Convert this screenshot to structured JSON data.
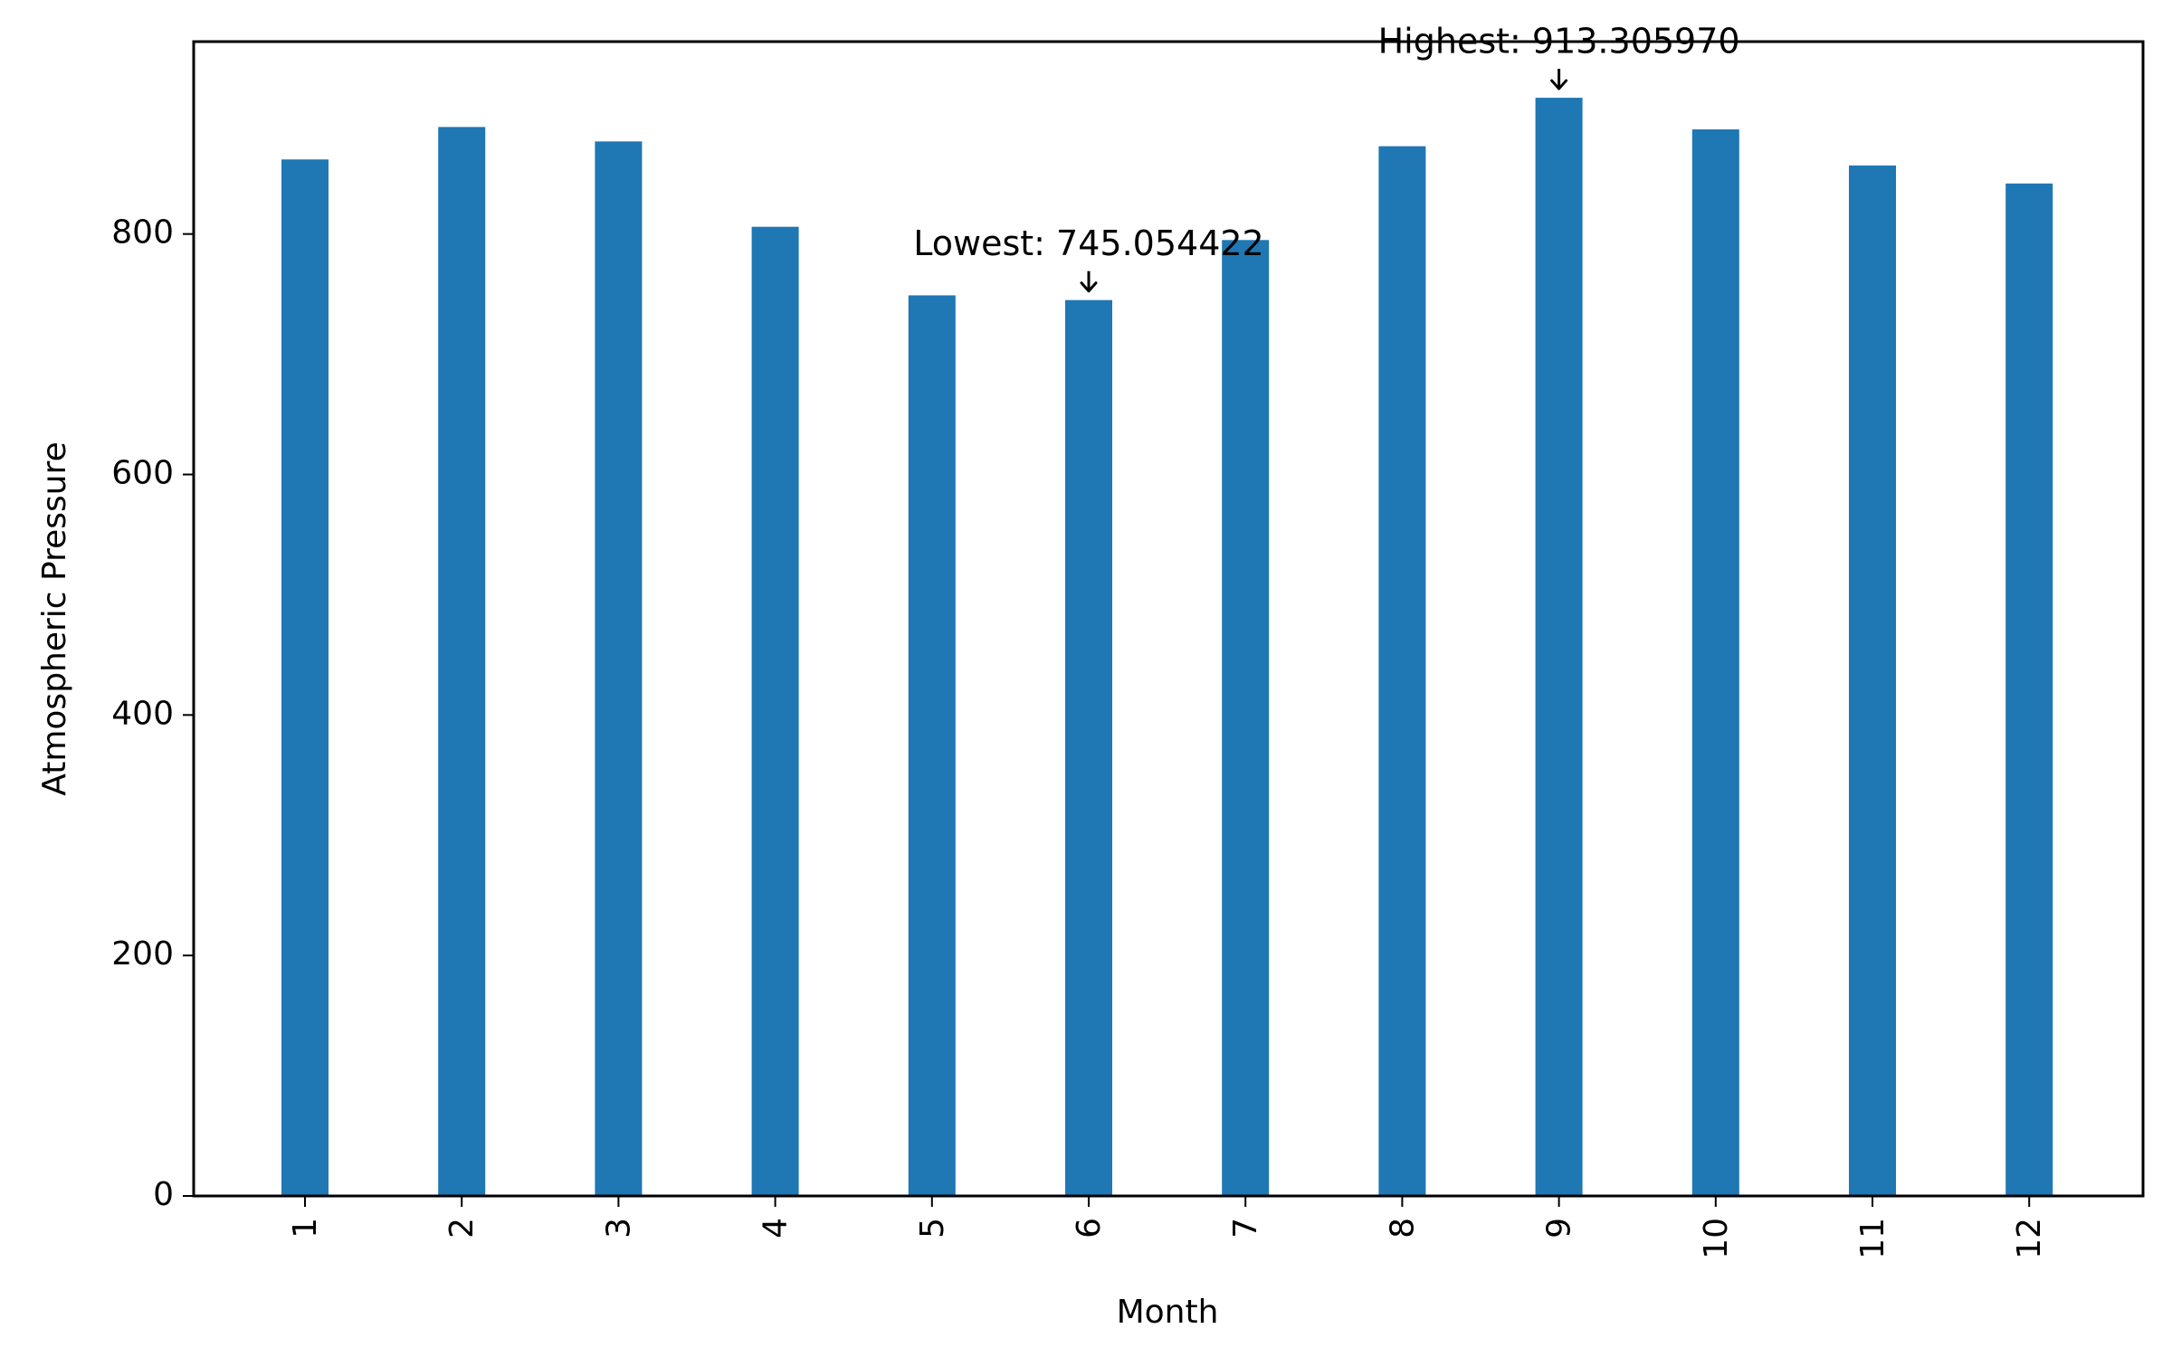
{
  "chart_data": {
    "type": "bar",
    "xlabel": "Month",
    "ylabel": "Atmospheric Pressure",
    "categories": [
      "1",
      "2",
      "3",
      "4",
      "5",
      "6",
      "7",
      "8",
      "9",
      "10",
      "11",
      "12"
    ],
    "values": [
      862,
      889,
      877,
      806,
      749,
      745.054422,
      795,
      873,
      913.30597,
      887,
      857,
      842
    ],
    "ylim": [
      0,
      960
    ],
    "yticks": [
      0,
      200,
      400,
      600,
      800
    ],
    "grid": false,
    "colors": {
      "bar": "#1f77b4",
      "axis": "#000000"
    },
    "annotations": [
      {
        "category": "6",
        "value": 745.054422,
        "text": "Lowest: 745.054422"
      },
      {
        "category": "9",
        "value": 913.30597,
        "text": "Highest: 913.305970"
      }
    ]
  }
}
